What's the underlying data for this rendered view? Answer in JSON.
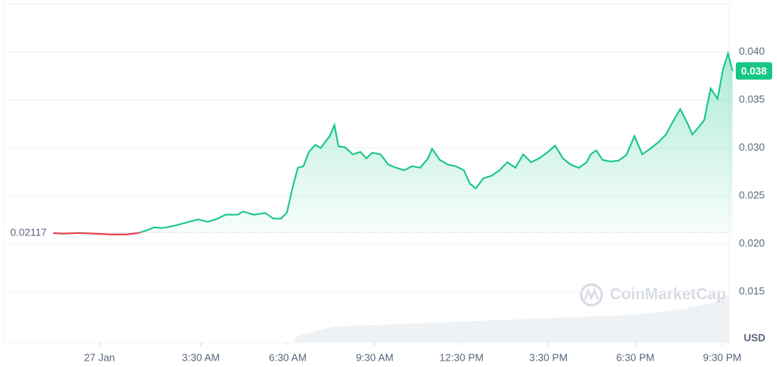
{
  "chart_data": {
    "type": "line",
    "x": [
      -1.67,
      -1.26,
      -0.71,
      -0.16,
      0.38,
      0.93,
      1.34,
      1.62,
      1.89,
      2.16,
      2.58,
      2.99,
      3.4,
      3.73,
      4.08,
      4.36,
      4.77,
      4.96,
      5.32,
      5.73,
      6.0,
      6.27,
      6.47,
      6.68,
      6.85,
      7.04,
      7.23,
      7.45,
      7.64,
      7.78,
      7.95,
      8.11,
      8.25,
      8.47,
      8.74,
      9.01,
      9.21,
      9.42,
      9.7,
      9.97,
      10.25,
      10.52,
      10.79,
      11.07,
      11.34,
      11.48,
      11.75,
      12.03,
      12.3,
      12.58,
      12.79,
      12.99,
      13.26,
      13.53,
      13.81,
      14.08,
      14.36,
      14.63,
      14.9,
      15.18,
      15.45,
      15.73,
      16.0,
      16.27,
      16.55,
      16.82,
      16.96,
      17.15,
      17.37,
      17.64,
      17.92,
      18.19,
      18.47,
      18.74,
      19.01,
      19.29,
      19.56,
      19.78,
      20.05,
      20.33,
      20.47,
      20.66,
      20.88,
      21.1,
      21.34,
      21.53,
      21.7,
      21.86
    ],
    "series": [
      {
        "color": "#16c784",
        "below_color": "#ea3943",
        "values": [
          0.02112,
          0.02104,
          0.02112,
          0.02104,
          0.02096,
          0.02096,
          0.02112,
          0.02137,
          0.0217,
          0.02162,
          0.02187,
          0.0222,
          0.02253,
          0.02228,
          0.02261,
          0.02303,
          0.02303,
          0.02336,
          0.02303,
          0.02319,
          0.02261,
          0.02261,
          0.02327,
          0.02601,
          0.02791,
          0.02808,
          0.02957,
          0.03031,
          0.02998,
          0.03056,
          0.03122,
          0.03238,
          0.03015,
          0.03007,
          0.02932,
          0.02957,
          0.0289,
          0.02948,
          0.02932,
          0.02824,
          0.02791,
          0.02766,
          0.02808,
          0.02791,
          0.0289,
          0.0299,
          0.02874,
          0.02824,
          0.02808,
          0.02766,
          0.02626,
          0.02576,
          0.02683,
          0.02708,
          0.02766,
          0.02849,
          0.02791,
          0.02932,
          0.02849,
          0.0289,
          0.02948,
          0.03023,
          0.0289,
          0.02824,
          0.02791,
          0.02849,
          0.02932,
          0.02973,
          0.02874,
          0.02857,
          0.02866,
          0.02924,
          0.03122,
          0.02932,
          0.0299,
          0.03056,
          0.03139,
          0.03263,
          0.03404,
          0.03238,
          0.03139,
          0.03205,
          0.03288,
          0.03619,
          0.03511,
          0.03818,
          0.03983,
          0.03801
        ]
      }
    ],
    "baseline": 0.02117,
    "current_price_label": "0.038",
    "xlim": [
      -3.3,
      21.75
    ],
    "xticks": [
      {
        "value": 0,
        "label": "27 Jan"
      },
      {
        "value": 3.5,
        "label": "3:30 AM"
      },
      {
        "value": 6.5,
        "label": "6:30 AM"
      },
      {
        "value": 9.5,
        "label": "9:30 AM"
      },
      {
        "value": 12.5,
        "label": "12:30 PM"
      },
      {
        "value": 15.5,
        "label": "3:30 PM"
      },
      {
        "value": 18.5,
        "label": "6:30 PM"
      },
      {
        "value": 21.5,
        "label": "9:30 PM"
      }
    ],
    "ylim": [
      0.0097,
      0.045
    ],
    "yticks": [
      0.015,
      {
        "value": 0.02,
        "label": "0.020"
      },
      0.025,
      {
        "value": 0.03,
        "label": "0.030"
      },
      0.035,
      {
        "value": 0.04,
        "label": "0.040"
      }
    ],
    "y_unit": "USD",
    "watermark": "CoinMarketCap",
    "grid": true
  }
}
